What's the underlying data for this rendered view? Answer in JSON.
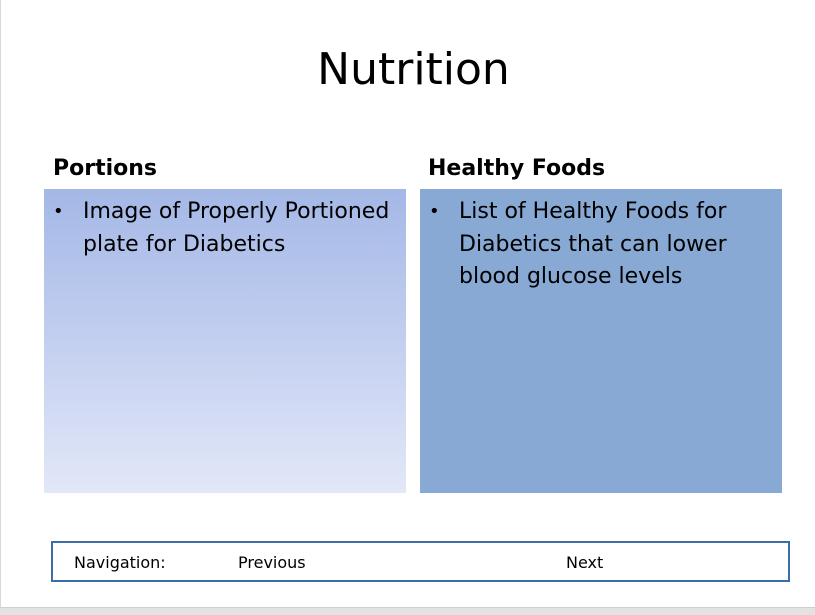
{
  "slide": {
    "title": "Nutrition",
    "left_column": {
      "heading": "Portions",
      "bullets": [
        "Image of Properly Portioned plate for Diabetics"
      ]
    },
    "right_column": {
      "heading": "Healthy Foods",
      "bullets": [
        "List of Healthy Foods for Diabetics that can lower blood glucose levels"
      ]
    }
  },
  "navigation": {
    "label": "Navigation:",
    "previous": "Previous",
    "next": "Next"
  },
  "colors": {
    "left_box_top": "#a4b8e6",
    "left_box_bottom": "#e2e8f7",
    "right_box": "#87a9d3",
    "nav_border": "#3a6ea8"
  }
}
